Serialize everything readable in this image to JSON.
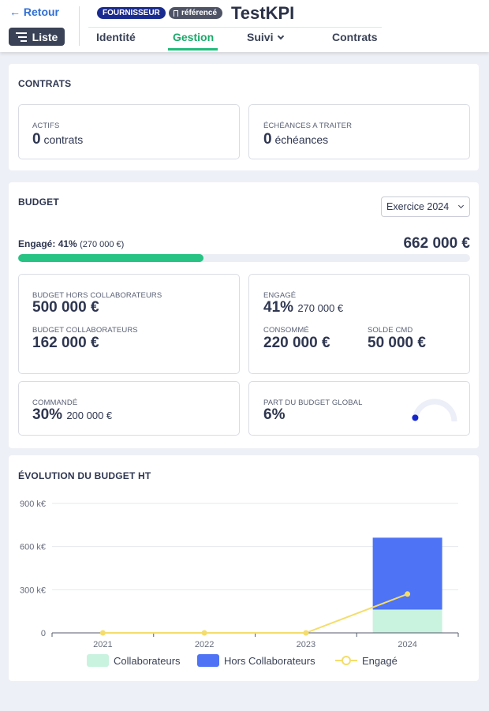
{
  "header": {
    "back_label": "Retour",
    "list_label": "Liste",
    "badge_supplier": "FOURNISSEUR",
    "badge_ref": "référencé",
    "title": "TestKPI",
    "tabs": [
      {
        "label": "Identité"
      },
      {
        "label": "Gestion"
      },
      {
        "label": "Suivi"
      },
      {
        "label": "Contrats"
      }
    ]
  },
  "contrats": {
    "title": "CONTRATS",
    "actifs": {
      "label": "ACTIFS",
      "value": "0",
      "unit": "contrats"
    },
    "echeances": {
      "label": "ÉCHÉANCES A TRAITER",
      "value": "0",
      "unit": "échéances"
    }
  },
  "budget": {
    "title": "BUDGET",
    "exercise": "Exercice 2024",
    "engage_label": "Engagé:",
    "engage_pct": "41%",
    "engage_amount": "(270 000 €)",
    "engage_progress": 0.41,
    "total": "662 000 €",
    "hors_collab_label": "BUDGET HORS COLLABORATEURS",
    "hors_collab_value": "500 000 €",
    "collab_label": "BUDGET COLLABORATEURS",
    "collab_value": "162 000 €",
    "engage_box_label": "ENGAGÉ",
    "engage_box_pct": "41%",
    "engage_box_amount": "270 000 €",
    "consomme_label": "CONSOMMÉ",
    "consomme_value": "220 000 €",
    "solde_label": "SOLDE CMD",
    "solde_value": "50 000 €",
    "commande_label": "COMMANDÉ",
    "commande_pct": "30%",
    "commande_amount": "200 000 €",
    "part_label": "PART DU BUDGET GLOBAL",
    "part_value": "6%",
    "part_gauge": 0.06,
    "colors": {
      "progress": "#27c384",
      "gauge_track": "#eceef8",
      "gauge_dot": "#1424cc"
    }
  },
  "evolution": {
    "title": "ÉVOLUTION DU BUDGET HT"
  },
  "chart_data": {
    "type": "bar",
    "categories": [
      "2021",
      "2022",
      "2023",
      "2024"
    ],
    "series": [
      {
        "name": "Collaborateurs",
        "kind": "bar-stacked",
        "values": [
          0,
          0,
          0,
          162
        ],
        "color": "#c9f2df"
      },
      {
        "name": "Hors Collaborateurs",
        "kind": "bar-stacked",
        "values": [
          0,
          0,
          0,
          500
        ],
        "color": "#4e73f5"
      },
      {
        "name": "Engagé",
        "kind": "line",
        "values": [
          0,
          0,
          0,
          270
        ],
        "color": "#f4dd6a"
      }
    ],
    "y_ticks": [
      "0",
      "300 k€",
      "600 k€",
      "900 k€"
    ],
    "ylim": [
      0,
      900
    ],
    "grid": true,
    "legend_position": "bottom"
  }
}
